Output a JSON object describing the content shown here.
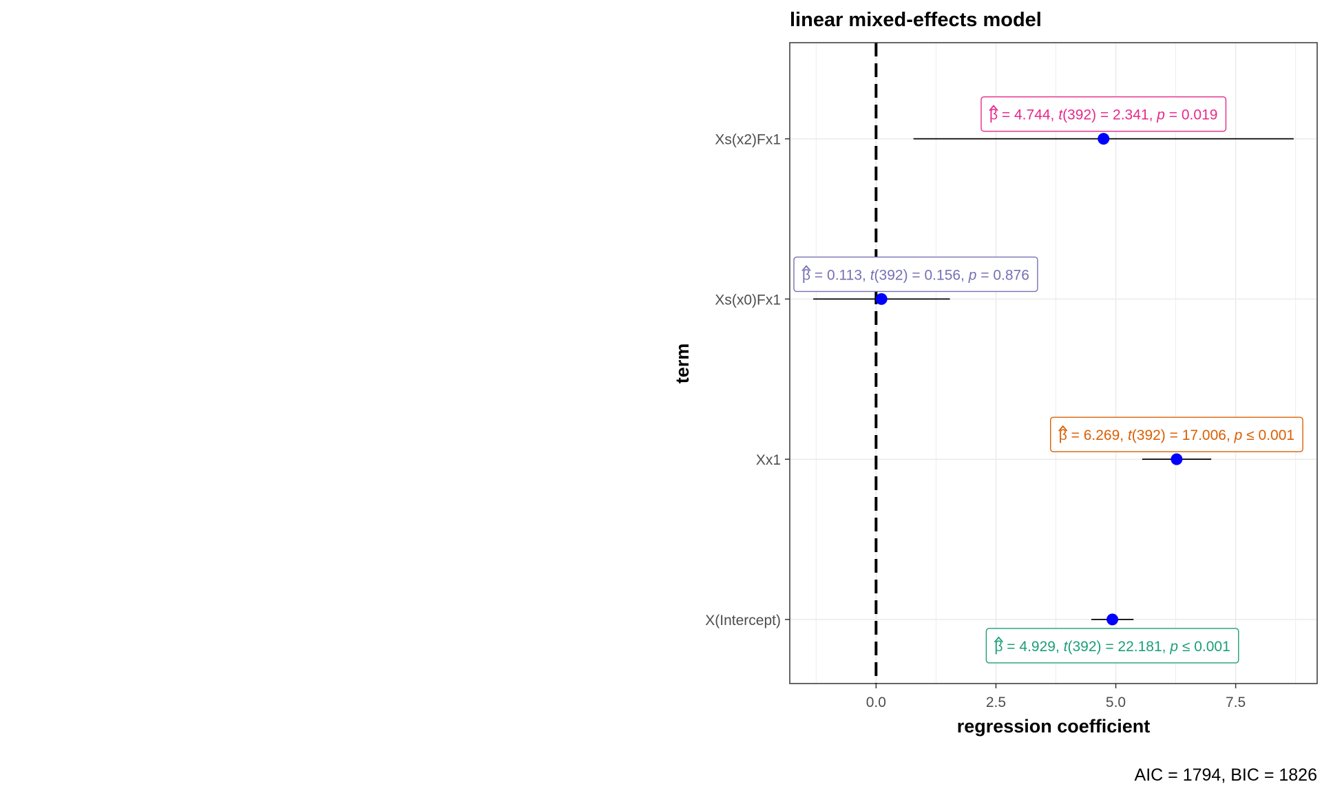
{
  "chart_data": {
    "type": "scatter",
    "title": "linear mixed-effects model",
    "xlabel": "regression coefficient",
    "ylabel": "term",
    "caption": "AIC = 1794, BIC = 1826",
    "xlim": [
      -1.8,
      9.2
    ],
    "xticks": [
      "0.0",
      "2.5",
      "5.0",
      "7.5"
    ],
    "xtick_values": [
      0,
      2.5,
      5.0,
      7.5
    ],
    "reference_line": 0,
    "grid": true,
    "point_color": "#0000ff",
    "terms": [
      {
        "term": "Xs(x2)Fx1",
        "estimate": 4.744,
        "conf_low": 0.78,
        "conf_high": 8.71,
        "color": "#e7298a",
        "label_side": "above",
        "label": {
          "beta": "4.744",
          "t_df": "392",
          "t": "2.341",
          "p_rel": "=",
          "p": "0.019"
        }
      },
      {
        "term": "Xs(x0)Fx1",
        "estimate": 0.113,
        "conf_low": -1.31,
        "conf_high": 1.54,
        "color": "#7570b3",
        "label_side": "above",
        "label": {
          "beta": "0.113",
          "t_df": "392",
          "t": "0.156",
          "p_rel": "=",
          "p": "0.876"
        }
      },
      {
        "term": "Xx1",
        "estimate": 6.269,
        "conf_low": 5.55,
        "conf_high": 6.99,
        "color": "#d95f02",
        "label_side": "above",
        "label": {
          "beta": "6.269",
          "t_df": "392",
          "t": "17.006",
          "p_rel": "≤",
          "p": "0.001"
        }
      },
      {
        "term": "X(Intercept)",
        "estimate": 4.929,
        "conf_low": 4.49,
        "conf_high": 5.37,
        "color": "#1b9e77",
        "label_side": "below",
        "label": {
          "beta": "4.929",
          "t_df": "392",
          "t": "22.181",
          "p_rel": "≤",
          "p": "0.001"
        }
      }
    ]
  }
}
